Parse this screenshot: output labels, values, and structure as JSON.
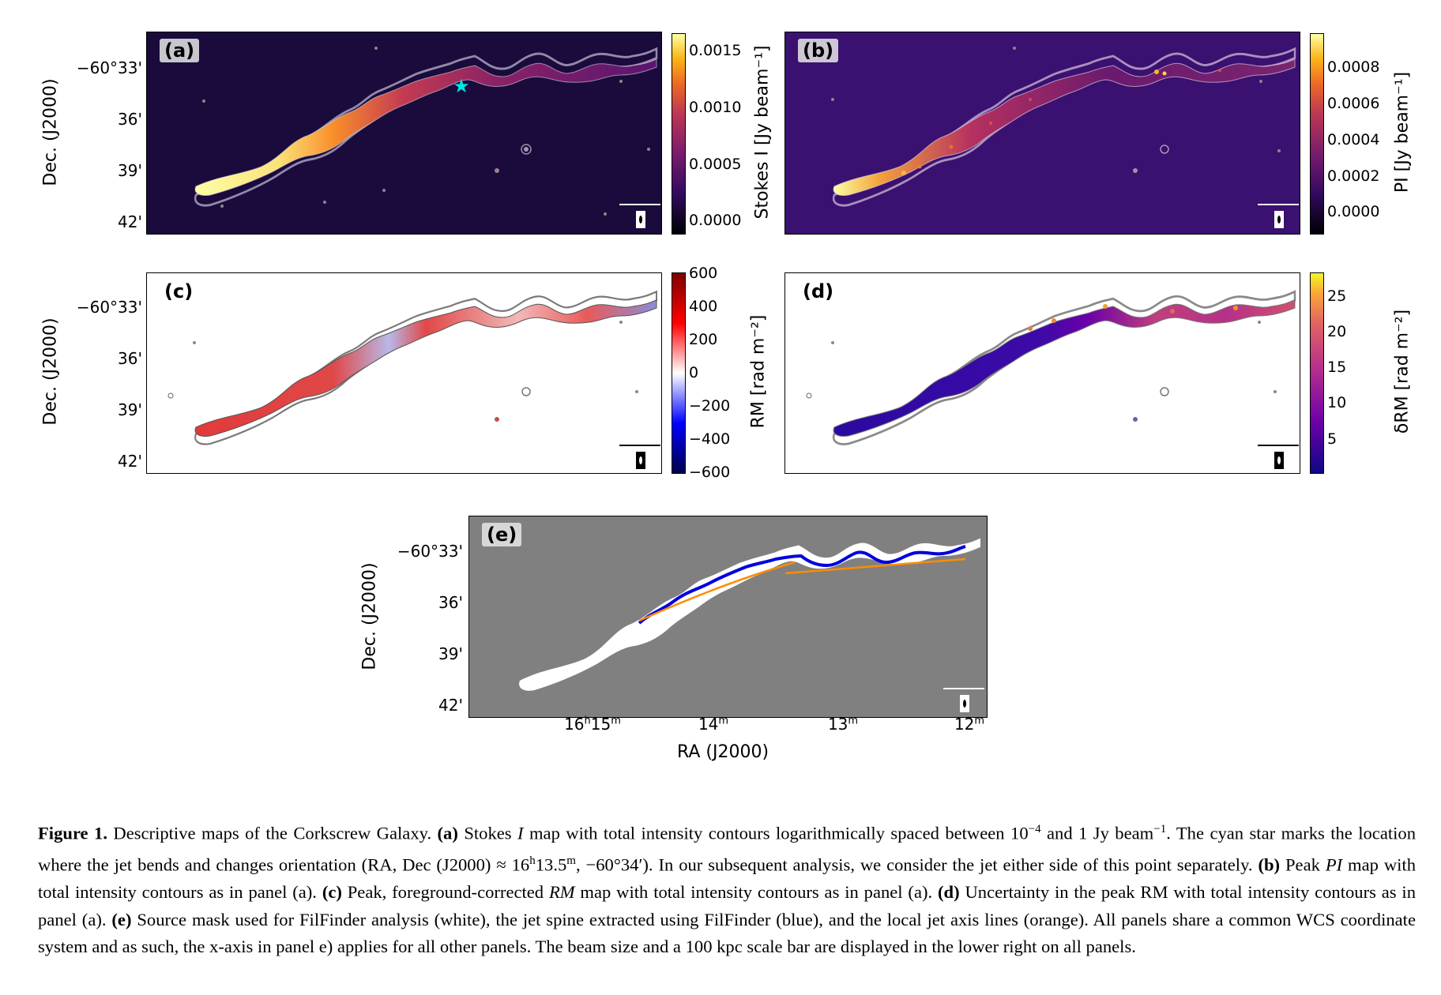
{
  "figure": {
    "y_axis_label": "Dec. (J2000)",
    "x_axis_label": "RA (J2000)",
    "y_ticks": [
      "−60°33'",
      "36'",
      "39'",
      "42'"
    ],
    "x_ticks": [
      {
        "h": "16",
        "hs": "h",
        "m": "15",
        "ms": "m"
      },
      {
        "h": "",
        "hs": "",
        "m": "14",
        "ms": "m"
      },
      {
        "h": "",
        "hs": "",
        "m": "13",
        "ms": "m"
      },
      {
        "h": "",
        "hs": "",
        "m": "12",
        "ms": "m"
      }
    ],
    "panels": {
      "a": {
        "label": "(a)",
        "colorbar_label": "Stokes I [Jy beam⁻¹]",
        "colorbar_ticks": [
          "0.0015",
          "0.0010",
          "0.0005",
          "0.0000"
        ],
        "colormap": "inferno",
        "background": "#1a0b3c",
        "marker": "cyan star at jet bend"
      },
      "b": {
        "label": "(b)",
        "colorbar_label": "PI [Jy beam⁻¹]",
        "colorbar_ticks": [
          "0.0008",
          "0.0006",
          "0.0004",
          "0.0002",
          "0.0000"
        ],
        "colormap": "inferno",
        "background": "#3a1070"
      },
      "c": {
        "label": "(c)",
        "colorbar_label": "RM [rad m⁻²]",
        "colorbar_ticks": [
          "600",
          "400",
          "200",
          "0",
          "−200",
          "−400",
          "−600"
        ],
        "colormap": "seismic",
        "background": "#ffffff"
      },
      "d": {
        "label": "(d)",
        "colorbar_label": "δRM [rad m⁻²]",
        "colorbar_ticks": [
          "25",
          "20",
          "15",
          "10",
          "5"
        ],
        "colormap": "plasma",
        "background": "#ffffff"
      },
      "e": {
        "label": "(e)",
        "background": "#808080",
        "legend_colors": {
          "mask": "#ffffff",
          "spine": "#0000dd",
          "axis": "#ff8c00"
        }
      }
    }
  },
  "caption": {
    "label": "Figure 1.",
    "t1": " Descriptive maps of the Corkscrew Galaxy. ",
    "a_lab": "(a)",
    "t2": " Stokes ",
    "I": "I",
    "t3": " map with total intensity contours logarithmically spaced between 10",
    "exp1": "−4",
    "t4": " and 1 Jy beam",
    "exp2": "−1",
    "t5": ". The cyan star marks the location where the jet bends and changes orientation (RA, Dec (J2000) ≈ 16",
    "sup_h": "h",
    "t6": "13.5",
    "sup_m": "m",
    "t7": ", −60°34′). In our subsequent analysis, we consider the jet either side of this point separately. ",
    "b_lab": "(b)",
    "t8": " Peak ",
    "PI": "PI",
    "t9": " map with total intensity contours as in panel (a). ",
    "c_lab": "(c)",
    "t10": " Peak, foreground-corrected ",
    "RM": "RM",
    "t11": " map with total intensity contours as in panel (a). ",
    "d_lab": "(d)",
    "t12": " Uncertainty in the peak RM with total intensity contours as in panel (a). ",
    "e_lab": "(e)",
    "t13": " Source mask used for FilFinder analysis (white), the jet spine extracted using FilFinder (blue), and the local jet axis lines (orange). All panels share a common WCS coordinate system and as such, the x-axis in panel e) applies for all other panels. The beam size and a 100 kpc scale bar are displayed in the lower right on all panels."
  }
}
